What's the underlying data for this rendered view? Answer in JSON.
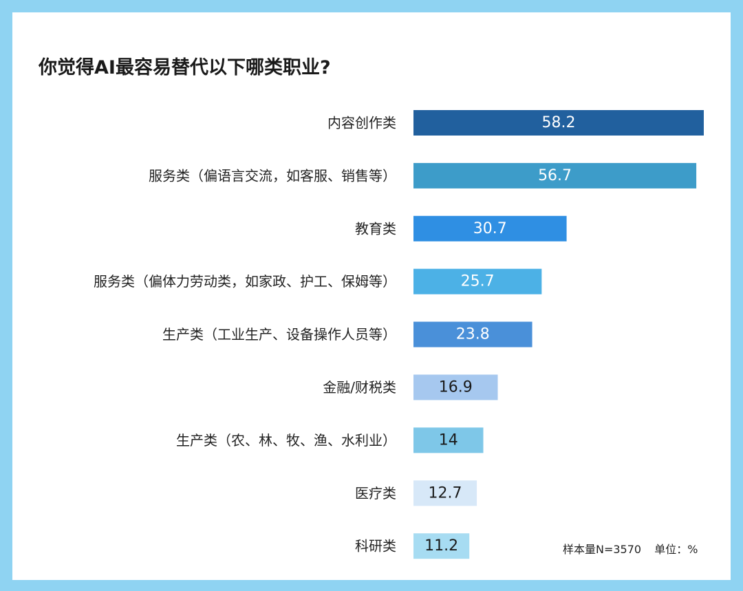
{
  "chart_data": {
    "type": "bar",
    "orientation": "horizontal",
    "title": "你觉得AI最容易替代以下哪类职业?",
    "categories": [
      "内容创作类",
      "服务类（偏语言交流，如客服、销售等）",
      "教育类",
      "服务类（偏体力劳动类，如家政、护工、保姆等）",
      "生产类（工业生产、设备操作人员等）",
      "金融/财税类",
      "生产类（农、林、牧、渔、水利业）",
      "医疗类",
      "科研类"
    ],
    "values": [
      58.2,
      56.7,
      30.7,
      25.7,
      23.8,
      16.9,
      14,
      12.7,
      11.2
    ],
    "value_labels": [
      "58.2",
      "56.7",
      "30.7",
      "25.7",
      "23.8",
      "16.9",
      "14",
      "12.7",
      "11.2"
    ],
    "bar_colors": [
      "#21609e",
      "#3d9cc9",
      "#2f8fe3",
      "#4cb1e6",
      "#4a90d9",
      "#a6c8ef",
      "#7ec7e8",
      "#d7e8f8",
      "#a7dcf2"
    ],
    "label_colors": [
      "#ffffff",
      "#ffffff",
      "#ffffff",
      "#ffffff",
      "#ffffff",
      "#1a1a1a",
      "#1a1a1a",
      "#1a1a1a",
      "#1a1a1a"
    ],
    "xlim": [
      0,
      58.2
    ],
    "grid": false,
    "legend": "none"
  },
  "notes": {
    "sample": "样本量N=3570",
    "unit": "单位：%"
  },
  "colors": {
    "border": "#8fd3f2",
    "background": "#ffffff"
  }
}
